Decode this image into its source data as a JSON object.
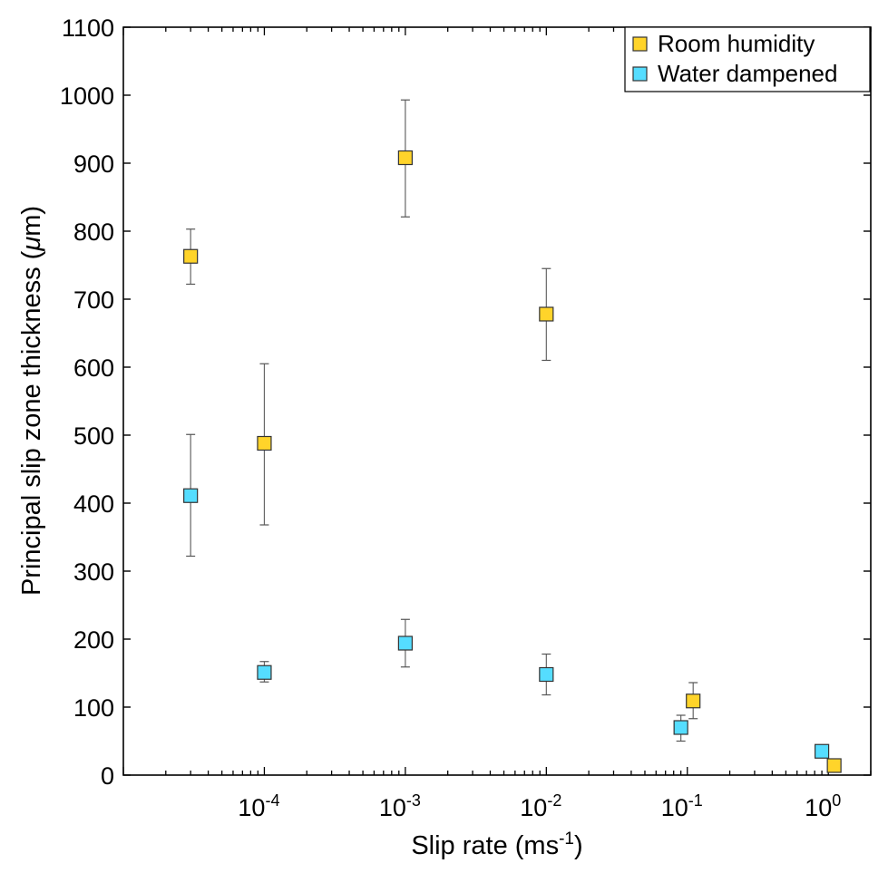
{
  "chart_data": {
    "type": "scatter",
    "title": "",
    "xlabel": "Slip rate (ms",
    "xlabel_sup": "-1",
    "xlabel_close": ")",
    "ylabel": "Principal slip zone thickness (",
    "ylabel_mu": "μ",
    "ylabel_close": "m)",
    "xscale": "log",
    "xlim": [
      1e-05,
      2.0
    ],
    "ylim": [
      0,
      1100
    ],
    "grid": false,
    "legend_position": "top-right",
    "x_ticks": [
      {
        "value": 0.0001,
        "base": "10",
        "exp": "-4"
      },
      {
        "value": 0.001,
        "base": "10",
        "exp": "-3"
      },
      {
        "value": 0.01,
        "base": "10",
        "exp": "-2"
      },
      {
        "value": 0.1,
        "base": "10",
        "exp": "-1"
      },
      {
        "value": 1,
        "base": "10",
        "exp": "0"
      }
    ],
    "y_ticks": [
      "0",
      "100",
      "200",
      "300",
      "400",
      "500",
      "600",
      "700",
      "800",
      "900",
      "1000",
      "1100"
    ],
    "series": [
      {
        "name": "Room humidity",
        "color": "#FFD42A",
        "points": [
          {
            "x": 3e-05,
            "y": 763,
            "err_low": 722,
            "err_high": 803
          },
          {
            "x": 0.0001,
            "y": 488,
            "err_low": 368,
            "err_high": 605
          },
          {
            "x": 0.001,
            "y": 908,
            "err_low": 821,
            "err_high": 993
          },
          {
            "x": 0.01,
            "y": 678,
            "err_low": 610,
            "err_high": 745
          },
          {
            "x": 0.11,
            "y": 109,
            "err_low": 83,
            "err_high": 136
          },
          {
            "x": 1.1,
            "y": 14,
            "err_low": 14,
            "err_high": 14
          }
        ]
      },
      {
        "name": "Water dampened",
        "color": "#55DDFF",
        "points": [
          {
            "x": 3e-05,
            "y": 411,
            "err_low": 322,
            "err_high": 501
          },
          {
            "x": 0.0001,
            "y": 151,
            "err_low": 137,
            "err_high": 167
          },
          {
            "x": 0.001,
            "y": 194,
            "err_low": 159,
            "err_high": 229
          },
          {
            "x": 0.01,
            "y": 148,
            "err_low": 118,
            "err_high": 178
          },
          {
            "x": 0.09,
            "y": 70,
            "err_low": 50,
            "err_high": 88
          },
          {
            "x": 0.9,
            "y": 35,
            "err_low": 31,
            "err_high": 44
          }
        ]
      }
    ]
  }
}
